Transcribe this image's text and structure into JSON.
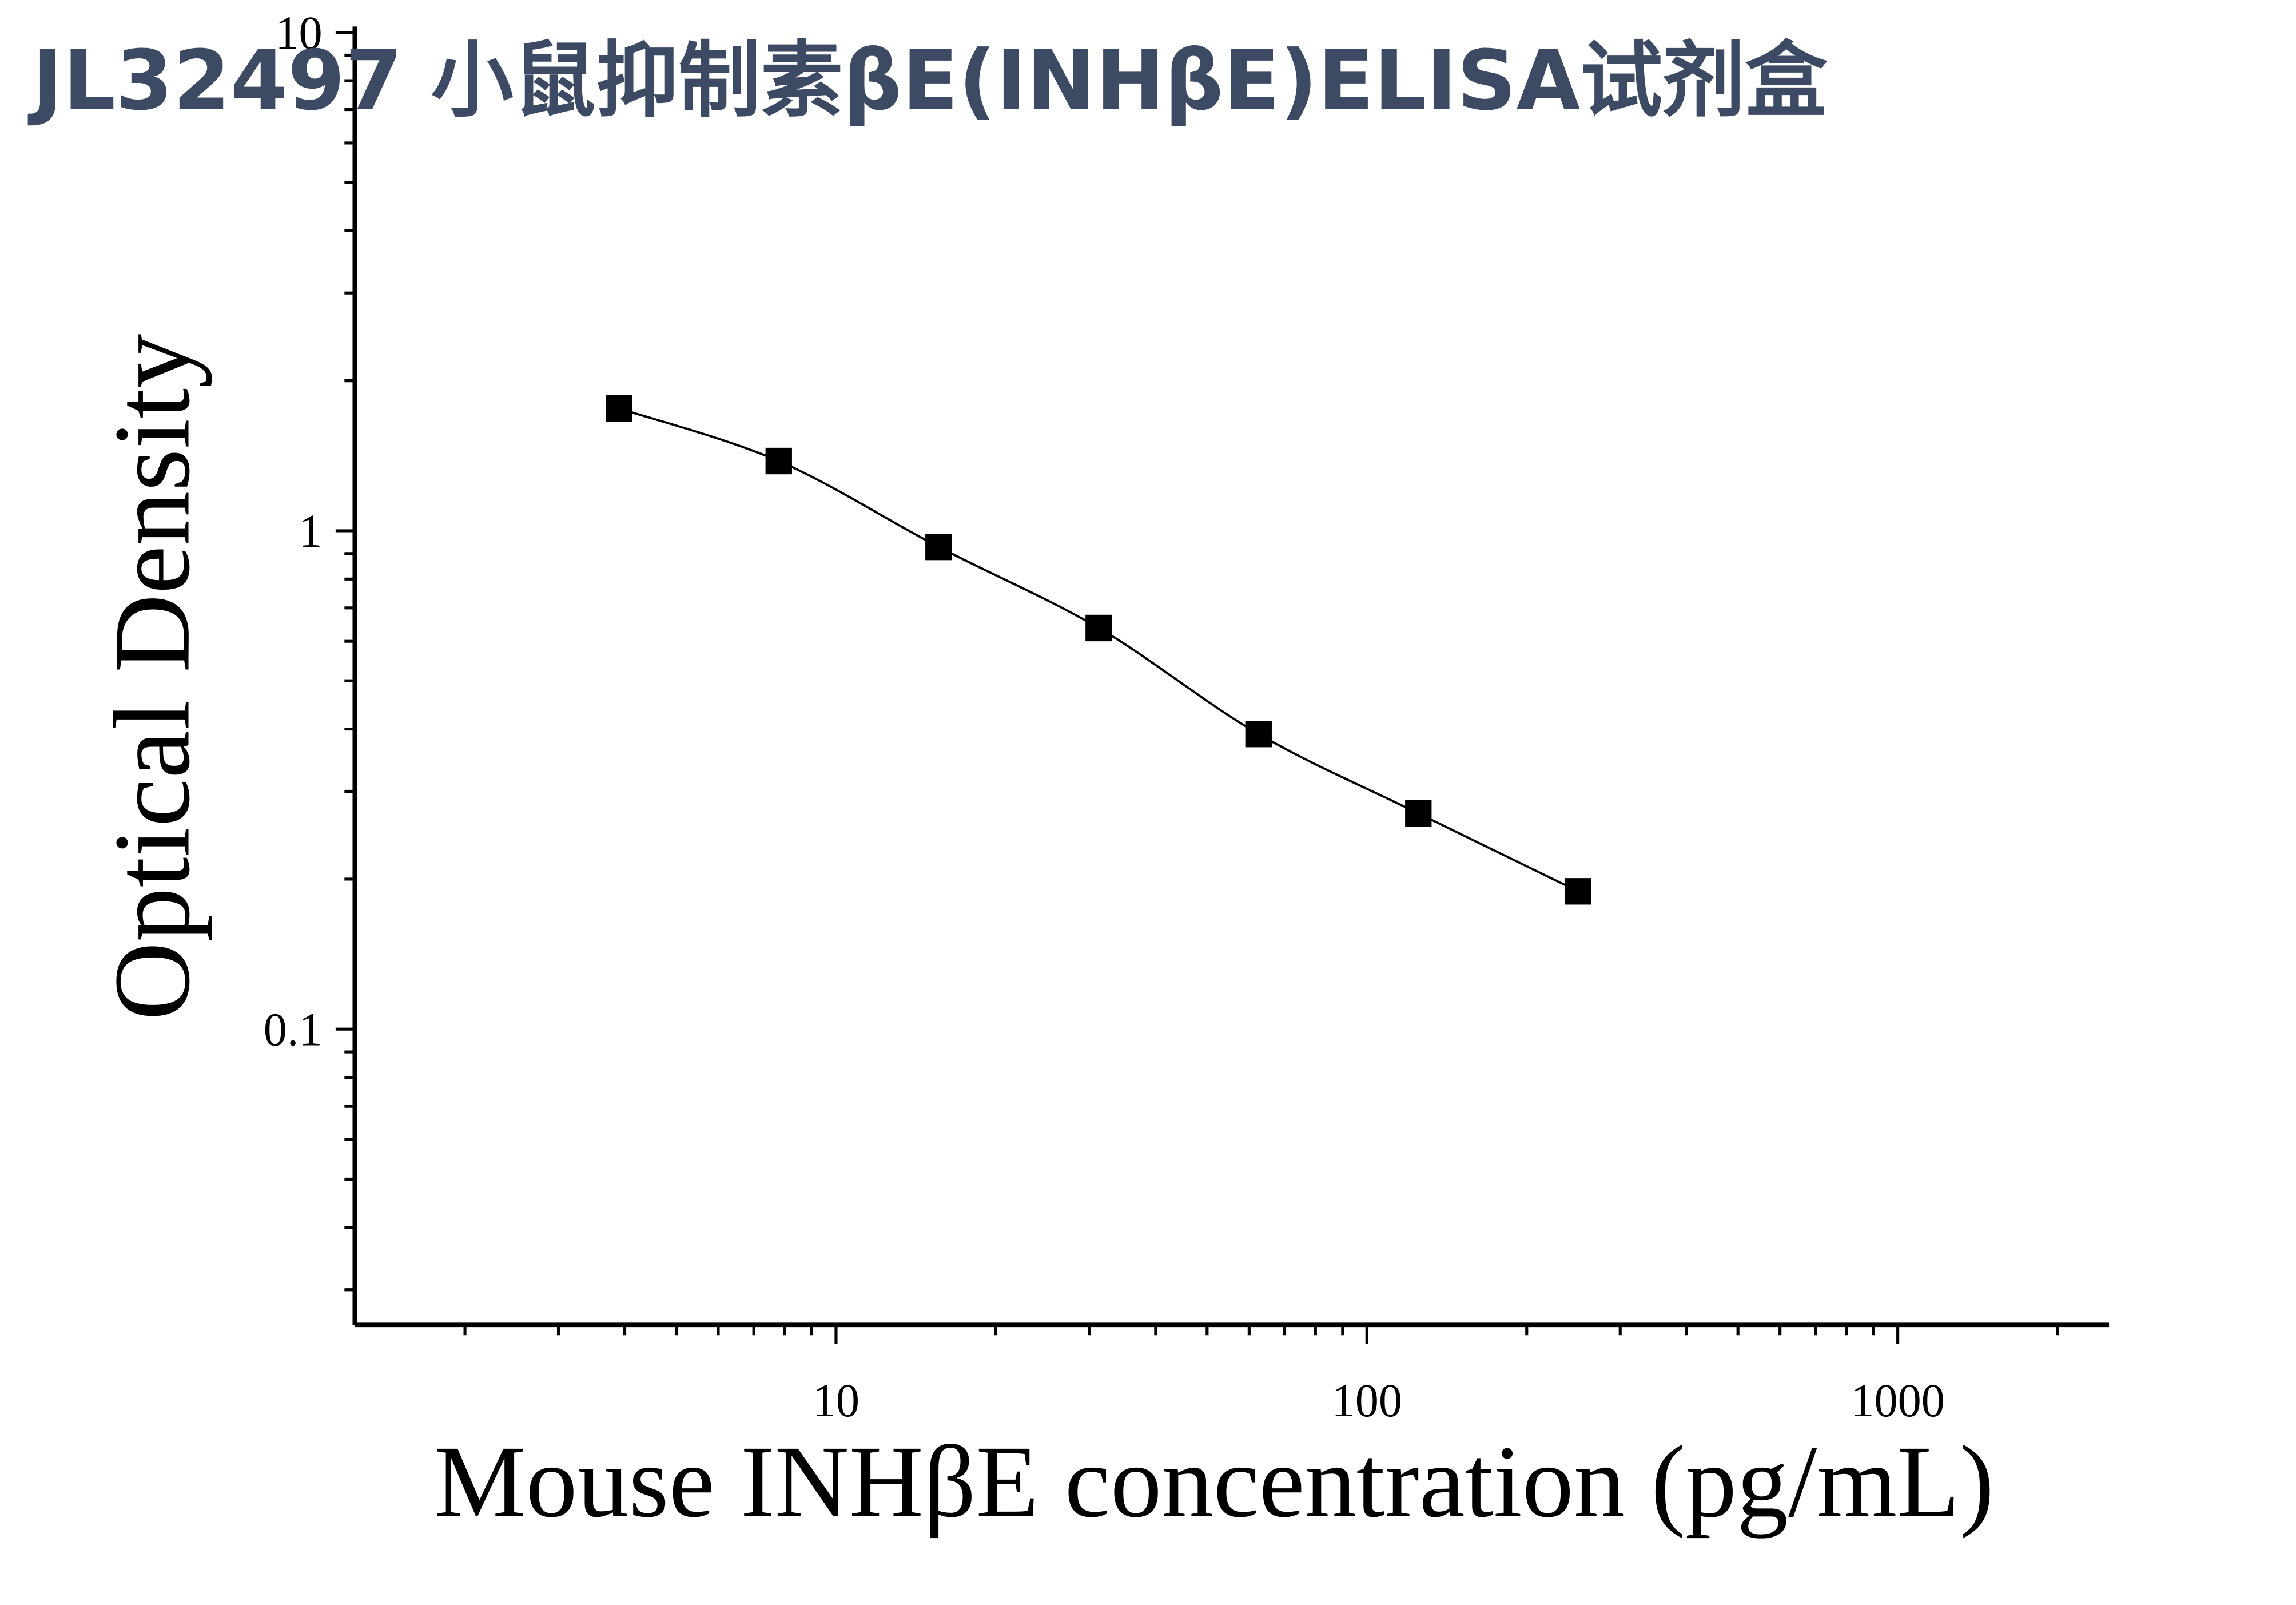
{
  "chart_data": {
    "type": "line",
    "title": "JL32497 小鼠抑制素βE(INHβE)ELISA试剂盒",
    "x_label": "Mouse INHβE concentration (pg/mL)",
    "y_label": "Optical Density",
    "x": [
      3.9,
      7.8,
      15.6,
      31.25,
      62.5,
      125,
      250
    ],
    "series": [
      {
        "color": "#000000",
        "values": [
          1.76,
          1.38,
          0.928,
          0.638,
          0.391,
          0.271,
          0.189
        ]
      }
    ],
    "xlim": [
      1.24,
      2500
    ],
    "ylim": [
      0.0255,
      10
    ],
    "xticks": [
      10,
      100,
      1000
    ],
    "yticks": [
      0.1,
      1,
      10
    ],
    "log_x": true,
    "log_y": true
  }
}
